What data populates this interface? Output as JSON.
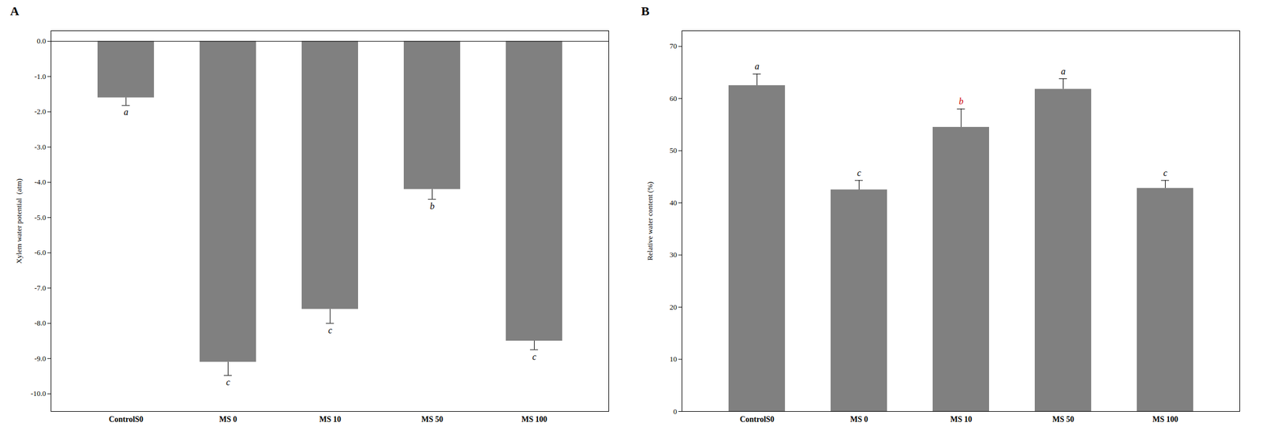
{
  "chart_data": [
    {
      "type": "bar",
      "title": "A",
      "categories": [
        "ControlS0",
        "MS 0",
        "MS 10",
        "MS 50",
        "MS 100"
      ],
      "values": [
        -1.6,
        -9.1,
        -7.6,
        -4.2,
        -8.5
      ],
      "errors": [
        0.22,
        0.38,
        0.4,
        0.28,
        0.25
      ],
      "letters": [
        "a",
        "c",
        "c",
        "b",
        "c"
      ],
      "letter_colors": [
        "#000000",
        "#000000",
        "#000000",
        "#000000",
        "#000000"
      ],
      "color": "#808080",
      "ylabel": "Xylem water potential  (atm)",
      "ylim": [
        -10.5,
        0.3
      ],
      "yticks": [
        {
          "value": 0.0,
          "label": "0.0"
        },
        {
          "value": -1.0,
          "label": "-1.0"
        },
        {
          "value": -2.0,
          "label": "-2.0"
        },
        {
          "value": -3.0,
          "label": "-3.0"
        },
        {
          "value": -4.0,
          "label": "-4.0"
        },
        {
          "value": -5.0,
          "label": "-5.0"
        },
        {
          "value": -6.0,
          "label": "-6.0"
        },
        {
          "value": -7.0,
          "label": "-7.0"
        },
        {
          "value": -8.0,
          "label": "-8.0"
        },
        {
          "value": -9.0,
          "label": "-9.0"
        },
        {
          "value": -10.0,
          "label": "-10.0"
        }
      ]
    },
    {
      "type": "bar",
      "title": "B",
      "categories": [
        "ControlS0",
        "MS 0",
        "MS 10",
        "MS 50",
        "MS 100"
      ],
      "values": [
        62.5,
        42.5,
        54.5,
        61.8,
        42.8
      ],
      "errors": [
        2.2,
        1.8,
        3.5,
        2.0,
        1.5
      ],
      "letters": [
        "a",
        "c",
        "b",
        "a",
        "c"
      ],
      "letter_colors": [
        "#000000",
        "#000000",
        "#cc0000",
        "#000000",
        "#000000"
      ],
      "color": "#808080",
      "ylabel": "Relative water content (%)",
      "ylim": [
        0,
        73
      ],
      "yticks": [
        0,
        10,
        20,
        30,
        40,
        50,
        60,
        70
      ]
    }
  ]
}
